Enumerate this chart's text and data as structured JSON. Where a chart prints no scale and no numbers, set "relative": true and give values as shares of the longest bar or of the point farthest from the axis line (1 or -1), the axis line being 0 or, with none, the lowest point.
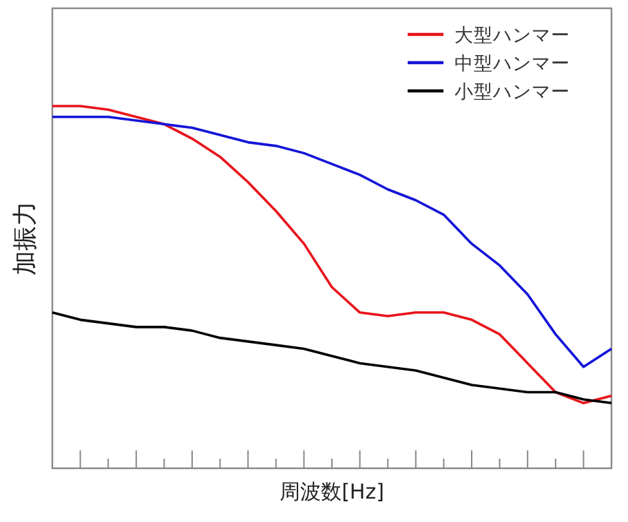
{
  "chart_data": {
    "type": "line",
    "relative": true,
    "xlabel": "周波数[Hz]",
    "ylabel": "加振力",
    "legend": "top right",
    "grid": false,
    "categories": [
      null,
      null,
      null,
      null,
      null,
      null,
      null,
      null,
      null,
      null,
      null,
      null,
      null,
      null,
      null,
      null,
      null,
      null,
      null,
      null,
      null
    ],
    "series": [
      {
        "name": "大型ハンマー",
        "color": "#e8141c",
        "values": [
          1.0,
          1.0,
          0.99,
          0.97,
          0.95,
          0.91,
          0.86,
          0.79,
          0.71,
          0.62,
          0.5,
          0.43,
          0.42,
          0.43,
          0.43,
          0.41,
          0.37,
          0.29,
          0.21,
          0.18,
          0.2
        ]
      },
      {
        "name": "中型ハンマー",
        "color": "#1414d8",
        "values": [
          0.97,
          0.97,
          0.97,
          0.96,
          0.95,
          0.94,
          0.92,
          0.9,
          0.89,
          0.87,
          0.84,
          0.81,
          0.77,
          0.74,
          0.7,
          0.62,
          0.56,
          0.48,
          0.37,
          0.28,
          0.33
        ]
      },
      {
        "name": "小型ハンマー",
        "color": "#000000",
        "values": [
          0.43,
          0.41,
          0.4,
          0.39,
          0.39,
          0.38,
          0.36,
          0.35,
          0.34,
          0.33,
          0.31,
          0.29,
          0.28,
          0.27,
          0.25,
          0.23,
          0.22,
          0.21,
          0.21,
          0.19,
          0.18
        ]
      }
    ]
  }
}
